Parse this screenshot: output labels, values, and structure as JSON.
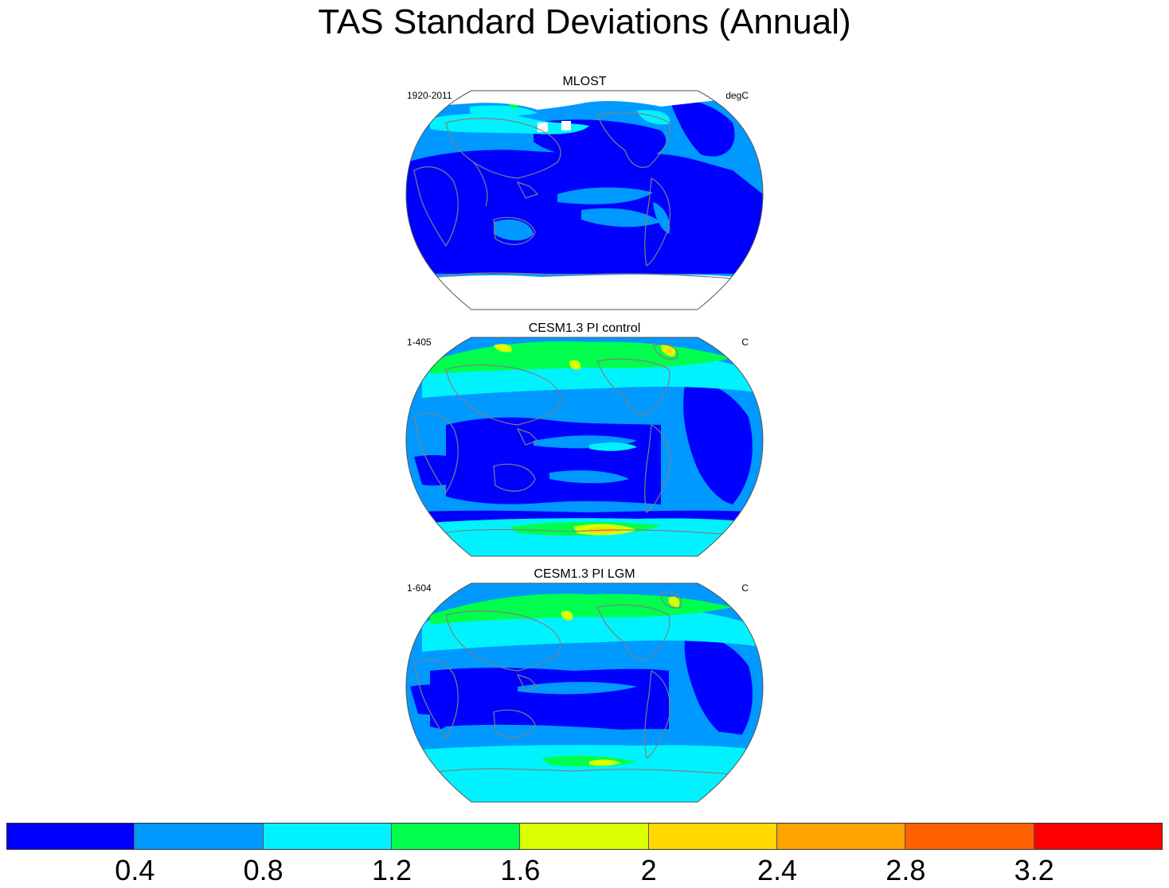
{
  "title": "TAS Standard Deviations (Annual)",
  "palette": [
    "#0000ff",
    "#0099ff",
    "#00f2ff",
    "#00ff4d",
    "#d9ff00",
    "#ffd900",
    "#ffa300",
    "#ff5f00",
    "#ff0000"
  ],
  "coastline_color": "#808080",
  "missing_color": "#ffffff",
  "panels": [
    {
      "title": "MLOST",
      "left": "1920-2011",
      "right": "degC",
      "has_missing": true
    },
    {
      "title": "CESM1.3 PI control",
      "left": "1-405",
      "right": "C",
      "has_missing": false
    },
    {
      "title": "CESM1.3 PI LGM",
      "left": "1-604",
      "right": "C",
      "has_missing": false
    }
  ],
  "colorbar": {
    "labels": [
      "0.4",
      "0.8",
      "1.2",
      "1.6",
      "2",
      "2.4",
      "2.8",
      "3.2"
    ]
  }
}
